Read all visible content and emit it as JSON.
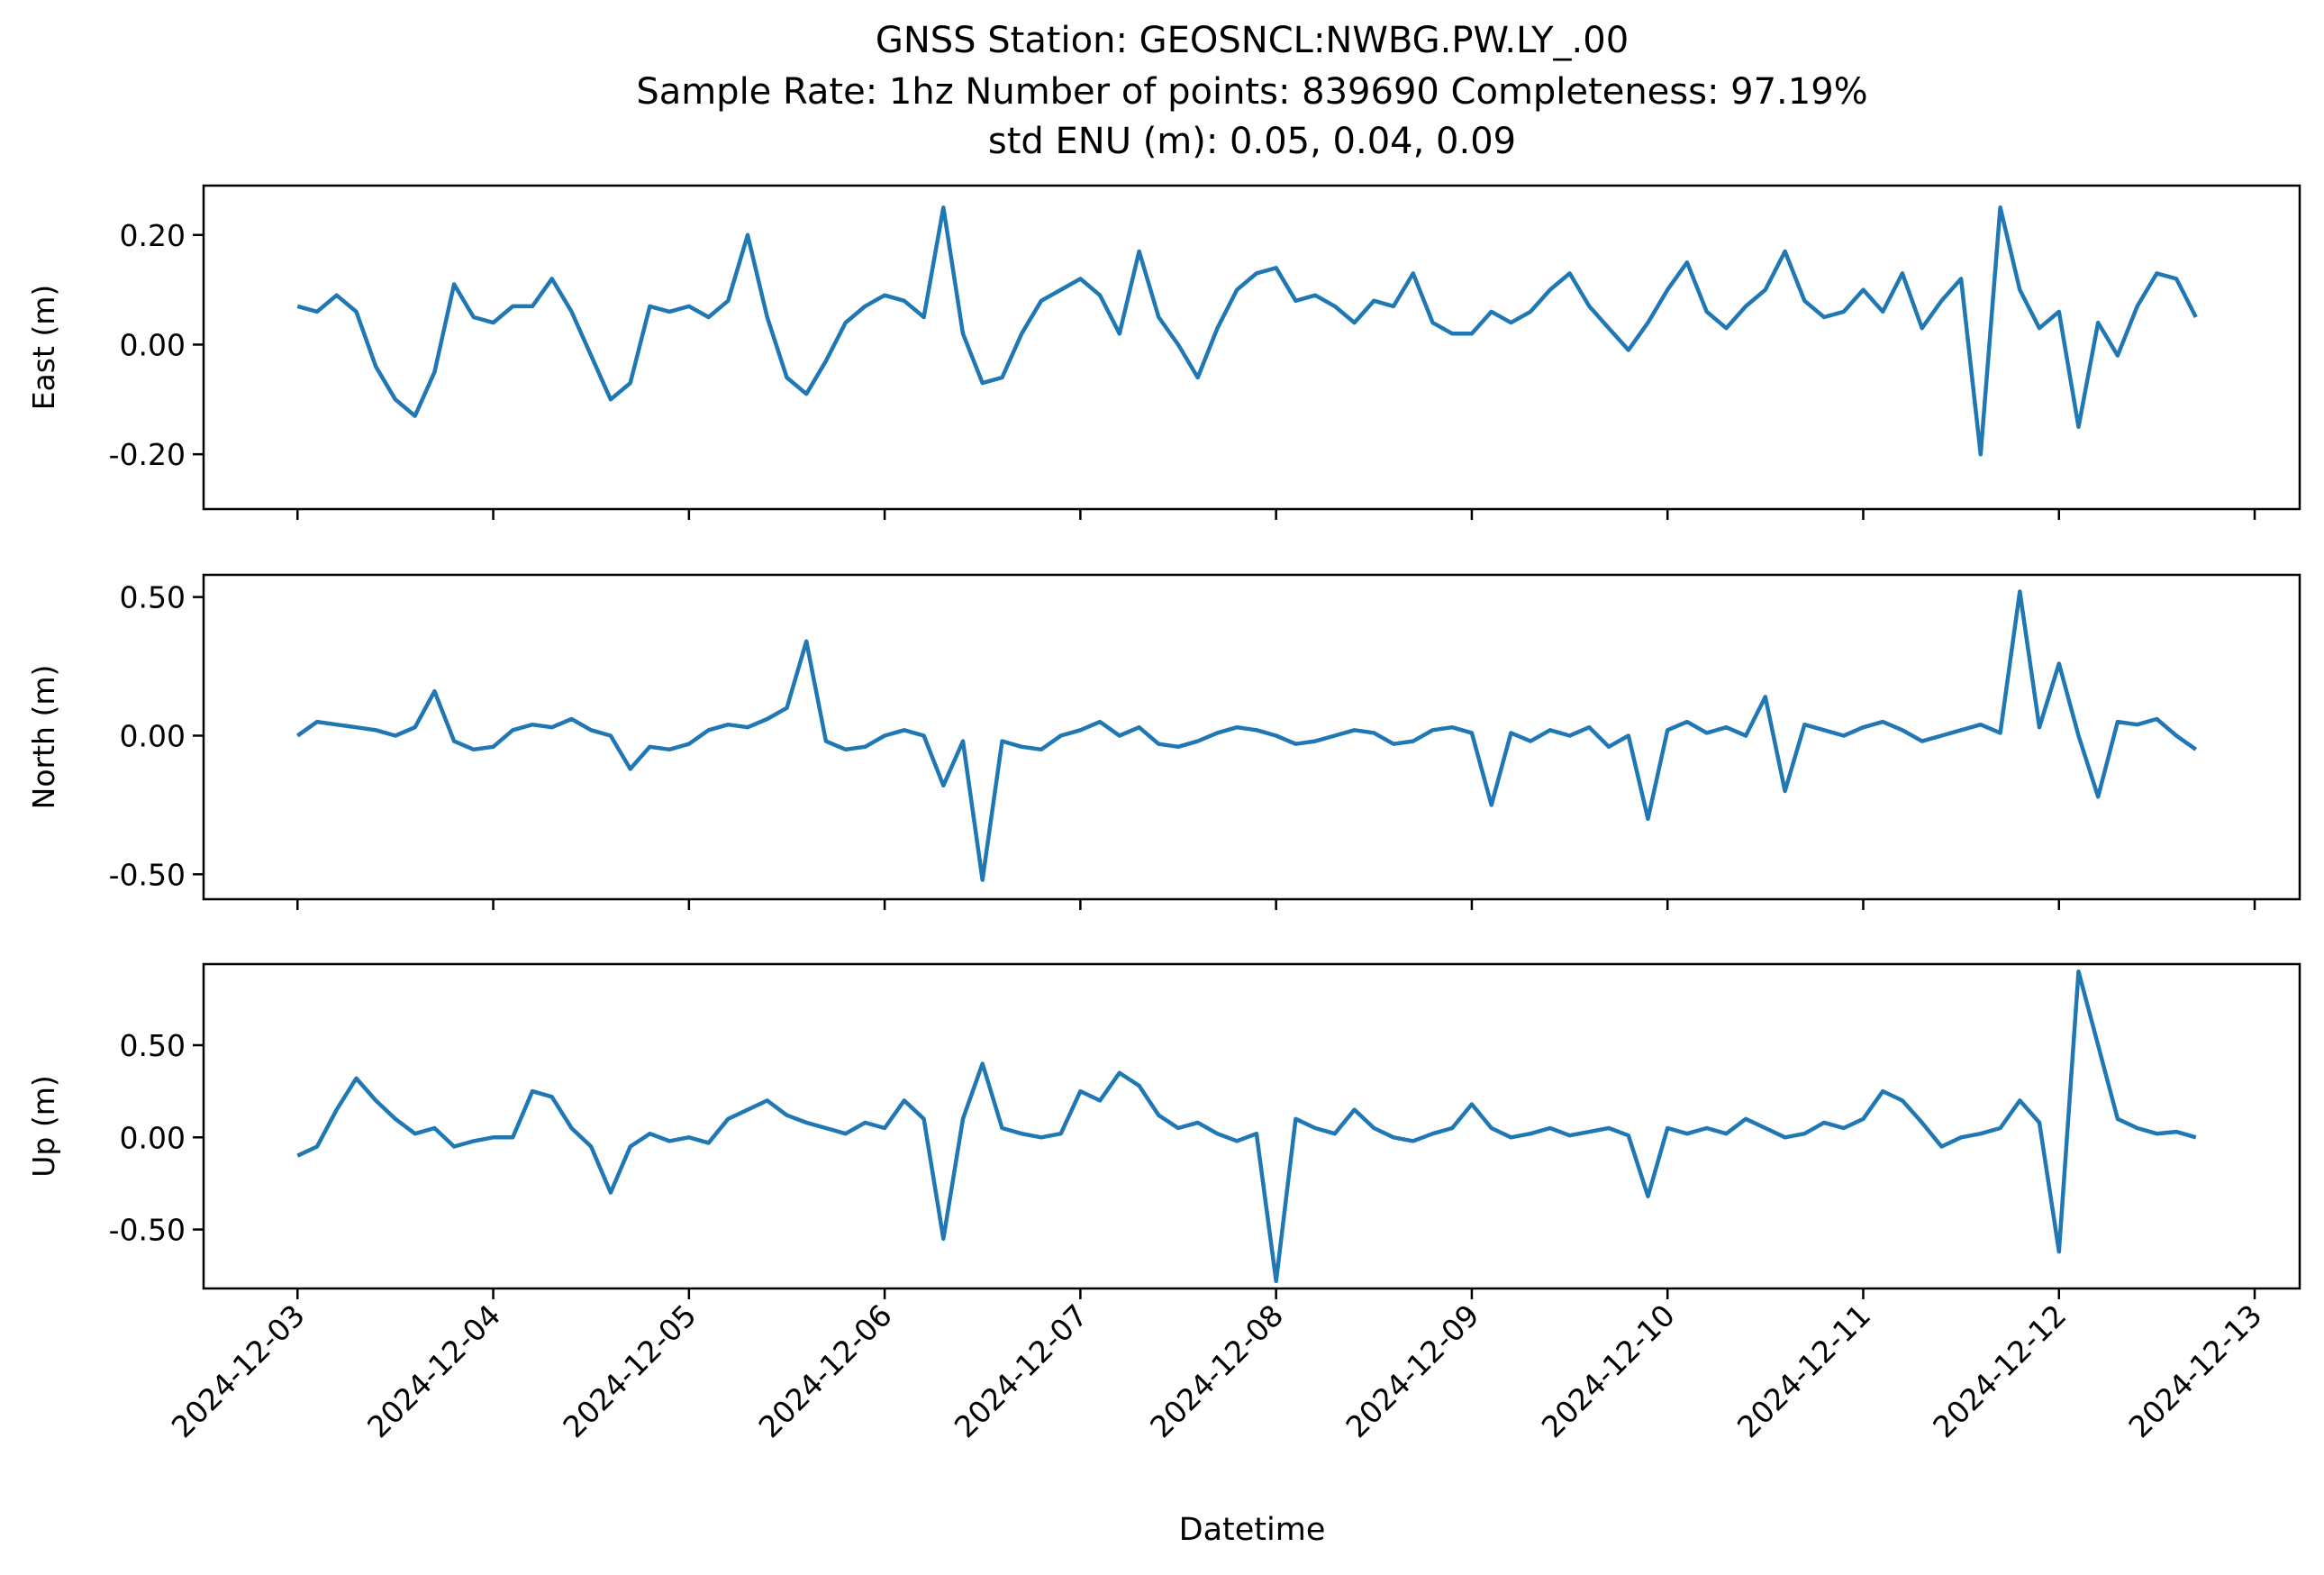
{
  "chart_data": {
    "type": "line",
    "title_lines": [
      "GNSS Station: GEOSNCL:NWBG.PW.LY_.00",
      "Sample Rate: 1hz   Number of points: 839690    Completeness:  97.19%",
      "std ENU (m):  0.05, 0.04, 0.09"
    ],
    "xlabel": "Datetime",
    "x_ticks": [
      "2024-12-03",
      "2024-12-04",
      "2024-12-05",
      "2024-12-06",
      "2024-12-07",
      "2024-12-08",
      "2024-12-09",
      "2024-12-10",
      "2024-12-11",
      "2024-12-12",
      "2024-12-13"
    ],
    "x_range_days": [
      -0.48,
      10.23
    ],
    "color": "#1f77b4",
    "panels": [
      {
        "name": "east",
        "ylabel": "East (m)",
        "ylim": [
          -0.3,
          0.29
        ],
        "y_ticks": [
          0.2,
          0.0,
          -0.2
        ],
        "y_tick_labels": [
          "0.20",
          "0.00",
          "-0.20"
        ],
        "series": [
          {
            "x": [
              0.0,
              0.1,
              0.2,
              0.3,
              0.4,
              0.5,
              0.6,
              0.7,
              0.8,
              0.9,
              1.0,
              1.1,
              1.2,
              1.3,
              1.4,
              1.5,
              1.6,
              1.7,
              1.8,
              1.9,
              2.0,
              2.1,
              2.2,
              2.3,
              2.4,
              2.5,
              2.6,
              2.7,
              2.8,
              2.9,
              3.0,
              3.1,
              3.2,
              3.3,
              3.4,
              3.5,
              3.6,
              3.7,
              3.8,
              3.9,
              4.0,
              4.1,
              4.2,
              4.3,
              4.4,
              4.5,
              4.6,
              4.7,
              4.8,
              4.9,
              5.0,
              5.1,
              5.2,
              5.3,
              5.4,
              5.5,
              5.6,
              5.7,
              5.8,
              5.9,
              6.0,
              6.1,
              6.2,
              6.3,
              6.4,
              6.5,
              6.6,
              6.7,
              6.8,
              6.9,
              7.0,
              7.1,
              7.2,
              7.3,
              7.4,
              7.5,
              7.6,
              7.7,
              7.8,
              7.9,
              8.0,
              8.1,
              8.2,
              8.3,
              8.4,
              8.5,
              8.6,
              8.7,
              8.8,
              8.9,
              9.0,
              9.1,
              9.2,
              9.3,
              9.4,
              9.5,
              9.6,
              9.7
            ],
            "y": [
              0.07,
              0.06,
              0.09,
              0.06,
              -0.04,
              -0.1,
              -0.13,
              -0.05,
              0.11,
              0.05,
              0.04,
              0.07,
              0.07,
              0.12,
              0.06,
              -0.02,
              -0.1,
              -0.07,
              0.07,
              0.06,
              0.07,
              0.05,
              0.08,
              0.2,
              0.05,
              -0.06,
              -0.09,
              -0.03,
              0.04,
              0.07,
              0.09,
              0.08,
              0.05,
              0.25,
              0.02,
              -0.07,
              -0.06,
              0.02,
              0.08,
              0.1,
              0.12,
              0.09,
              0.02,
              0.17,
              0.05,
              0.0,
              -0.06,
              0.03,
              0.1,
              0.13,
              0.14,
              0.08,
              0.09,
              0.07,
              0.04,
              0.08,
              0.07,
              0.13,
              0.04,
              0.02,
              0.02,
              0.06,
              0.04,
              0.06,
              0.1,
              0.13,
              0.07,
              0.03,
              -0.01,
              0.04,
              0.1,
              0.15,
              0.06,
              0.03,
              0.07,
              0.1,
              0.17,
              0.08,
              0.05,
              0.06,
              0.1,
              0.06,
              0.13,
              0.03,
              0.08,
              0.12,
              -0.2,
              0.25,
              0.1,
              0.03,
              0.06,
              -0.15,
              0.04,
              -0.02,
              0.07,
              0.13,
              0.12,
              0.05
            ]
          }
        ]
      },
      {
        "name": "north",
        "ylabel": "North (m)",
        "ylim": [
          -0.59,
          0.58
        ],
        "y_ticks": [
          0.5,
          0.0,
          -0.5
        ],
        "y_tick_labels": [
          "0.50",
          "0.00",
          "-0.50"
        ],
        "series": [
          {
            "x": [
              0.0,
              0.1,
              0.2,
              0.3,
              0.4,
              0.5,
              0.6,
              0.7,
              0.8,
              0.9,
              1.0,
              1.1,
              1.2,
              1.3,
              1.4,
              1.5,
              1.6,
              1.7,
              1.8,
              1.9,
              2.0,
              2.1,
              2.2,
              2.3,
              2.4,
              2.5,
              2.6,
              2.7,
              2.8,
              2.9,
              3.0,
              3.1,
              3.2,
              3.3,
              3.4,
              3.5,
              3.6,
              3.7,
              3.8,
              3.9,
              4.0,
              4.1,
              4.2,
              4.3,
              4.4,
              4.5,
              4.6,
              4.7,
              4.8,
              4.9,
              5.0,
              5.1,
              5.2,
              5.3,
              5.4,
              5.5,
              5.6,
              5.7,
              5.8,
              5.9,
              6.0,
              6.1,
              6.2,
              6.3,
              6.4,
              6.5,
              6.6,
              6.7,
              6.8,
              6.9,
              7.0,
              7.1,
              7.2,
              7.3,
              7.4,
              7.5,
              7.6,
              7.7,
              7.8,
              7.9,
              8.0,
              8.1,
              8.2,
              8.3,
              8.4,
              8.5,
              8.6,
              8.7,
              8.8,
              8.9,
              9.0,
              9.1,
              9.2,
              9.3,
              9.4,
              9.5,
              9.6,
              9.7
            ],
            "y": [
              0.0,
              0.05,
              0.04,
              0.03,
              0.02,
              0.0,
              0.03,
              0.16,
              -0.02,
              -0.05,
              -0.04,
              0.02,
              0.04,
              0.03,
              0.06,
              0.02,
              0.0,
              -0.12,
              -0.04,
              -0.05,
              -0.03,
              0.02,
              0.04,
              0.03,
              0.06,
              0.1,
              0.34,
              -0.02,
              -0.05,
              -0.04,
              0.0,
              0.02,
              0.0,
              -0.18,
              -0.02,
              -0.52,
              -0.02,
              -0.04,
              -0.05,
              0.0,
              0.02,
              0.05,
              0.0,
              0.03,
              -0.03,
              -0.04,
              -0.02,
              0.01,
              0.03,
              0.02,
              0.0,
              -0.03,
              -0.02,
              0.0,
              0.02,
              0.01,
              -0.03,
              -0.02,
              0.02,
              0.03,
              0.01,
              -0.25,
              0.01,
              -0.02,
              0.02,
              0.0,
              0.03,
              -0.04,
              0.0,
              -0.3,
              0.02,
              0.05,
              0.01,
              0.03,
              0.0,
              0.14,
              -0.2,
              0.04,
              0.02,
              0.0,
              0.03,
              0.05,
              0.02,
              -0.02,
              0.0,
              0.02,
              0.04,
              0.01,
              0.52,
              0.03,
              0.26,
              0.0,
              -0.22,
              0.05,
              0.04,
              0.06,
              0.0,
              -0.05
            ]
          }
        ]
      },
      {
        "name": "up",
        "ylabel": "Up (m)",
        "ylim": [
          -0.82,
          0.94
        ],
        "y_ticks": [
          0.5,
          0.0,
          -0.5
        ],
        "y_tick_labels": [
          "0.50",
          "0.00",
          "-0.50"
        ],
        "series": [
          {
            "x": [
              0.0,
              0.1,
              0.2,
              0.3,
              0.4,
              0.5,
              0.6,
              0.7,
              0.8,
              0.9,
              1.0,
              1.1,
              1.2,
              1.3,
              1.4,
              1.5,
              1.6,
              1.7,
              1.8,
              1.9,
              2.0,
              2.1,
              2.2,
              2.3,
              2.4,
              2.5,
              2.6,
              2.7,
              2.8,
              2.9,
              3.0,
              3.1,
              3.2,
              3.3,
              3.4,
              3.5,
              3.6,
              3.7,
              3.8,
              3.9,
              4.0,
              4.1,
              4.2,
              4.3,
              4.4,
              4.5,
              4.6,
              4.7,
              4.8,
              4.9,
              5.0,
              5.1,
              5.2,
              5.3,
              5.4,
              5.5,
              5.6,
              5.7,
              5.8,
              5.9,
              6.0,
              6.1,
              6.2,
              6.3,
              6.4,
              6.5,
              6.6,
              6.7,
              6.8,
              6.9,
              7.0,
              7.1,
              7.2,
              7.3,
              7.4,
              7.5,
              7.6,
              7.7,
              7.8,
              7.9,
              8.0,
              8.1,
              8.2,
              8.3,
              8.4,
              8.5,
              8.6,
              8.7,
              8.8,
              8.9,
              9.0,
              9.1,
              9.2,
              9.3,
              9.4,
              9.5,
              9.6,
              9.7
            ],
            "y": [
              -0.1,
              -0.05,
              0.15,
              0.32,
              0.2,
              0.1,
              0.02,
              0.05,
              -0.05,
              -0.02,
              0.0,
              0.0,
              0.25,
              0.22,
              0.05,
              -0.05,
              -0.3,
              -0.05,
              0.02,
              -0.02,
              0.0,
              -0.03,
              0.1,
              0.15,
              0.2,
              0.12,
              0.08,
              0.05,
              0.02,
              0.08,
              0.05,
              0.2,
              0.1,
              -0.55,
              0.1,
              0.4,
              0.05,
              0.02,
              0.0,
              0.02,
              0.25,
              0.2,
              0.35,
              0.28,
              0.12,
              0.05,
              0.08,
              0.02,
              -0.02,
              0.02,
              -0.78,
              0.1,
              0.05,
              0.02,
              0.15,
              0.05,
              0.0,
              -0.02,
              0.02,
              0.05,
              0.18,
              0.05,
              0.0,
              0.02,
              0.05,
              0.01,
              0.03,
              0.05,
              0.01,
              -0.32,
              0.05,
              0.02,
              0.05,
              0.02,
              0.1,
              0.05,
              0.0,
              0.02,
              0.08,
              0.05,
              0.1,
              0.25,
              0.2,
              0.08,
              -0.05,
              0.0,
              0.02,
              0.05,
              0.2,
              0.08,
              -0.62,
              0.9,
              0.5,
              0.1,
              0.05,
              0.02,
              0.03,
              0.0
            ]
          }
        ]
      }
    ]
  }
}
